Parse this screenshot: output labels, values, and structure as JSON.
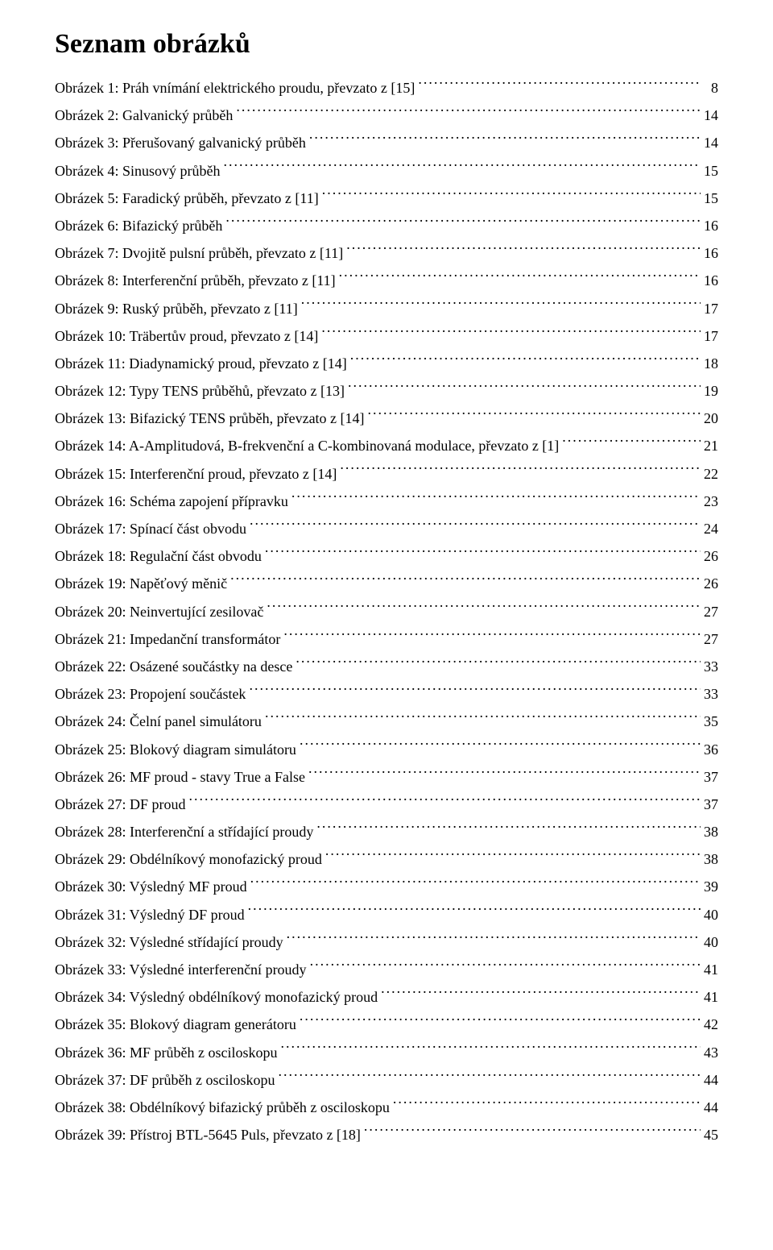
{
  "title": "Seznam obrázků",
  "entries": [
    {
      "label": "Obrázek 1: Práh vnímání elektrického proudu, převzato z [15]",
      "page": "8"
    },
    {
      "label": "Obrázek 2: Galvanický průběh",
      "page": "14"
    },
    {
      "label": "Obrázek 3: Přerušovaný galvanický průběh",
      "page": "14"
    },
    {
      "label": "Obrázek 4: Sinusový průběh",
      "page": "15"
    },
    {
      "label": "Obrázek 5: Faradický průběh, převzato z [11]",
      "page": "15"
    },
    {
      "label": "Obrázek 6: Bifazický průběh",
      "page": "16"
    },
    {
      "label": "Obrázek 7: Dvojitě pulsní průběh, převzato z [11]",
      "page": "16"
    },
    {
      "label": "Obrázek 8: Interferenční průběh, převzato z [11]",
      "page": "16"
    },
    {
      "label": "Obrázek 9: Ruský průběh, převzato z [11]",
      "page": "17"
    },
    {
      "label": "Obrázek 10: Träbertův proud, převzato z [14]",
      "page": "17"
    },
    {
      "label": "Obrázek 11: Diadynamický proud, převzato z [14]",
      "page": "18"
    },
    {
      "label": "Obrázek 12: Typy TENS průběhů, převzato z [13]",
      "page": "19"
    },
    {
      "label": "Obrázek 13: Bifazický TENS průběh, převzato z [14]",
      "page": "20"
    },
    {
      "label": "Obrázek 14: A-Amplitudová, B-frekvenční a C-kombinovaná modulace, převzato z [1]",
      "page": "21"
    },
    {
      "label": "Obrázek 15: Interferenční proud, převzato z [14]",
      "page": "22"
    },
    {
      "label": "Obrázek 16: Schéma zapojení přípravku",
      "page": "23"
    },
    {
      "label": "Obrázek 17: Spínací část obvodu",
      "page": "24"
    },
    {
      "label": "Obrázek 18: Regulační část obvodu",
      "page": "26"
    },
    {
      "label": "Obrázek 19: Napěťový měnič",
      "page": "26"
    },
    {
      "label": "Obrázek 20: Neinvertující zesilovač",
      "page": "27"
    },
    {
      "label": "Obrázek 21: Impedanční transformátor",
      "page": "27"
    },
    {
      "label": "Obrázek 22: Osázené součástky na desce",
      "page": "33"
    },
    {
      "label": "Obrázek 23: Propojení součástek",
      "page": "33"
    },
    {
      "label": "Obrázek 24: Čelní panel simulátoru",
      "page": "35"
    },
    {
      "label": "Obrázek 25: Blokový diagram simulátoru",
      "page": "36"
    },
    {
      "label": "Obrázek 26: MF proud - stavy True a False",
      "page": "37"
    },
    {
      "label": "Obrázek 27: DF proud",
      "page": "37"
    },
    {
      "label": "Obrázek 28: Interferenční a střídající proudy",
      "page": "38"
    },
    {
      "label": "Obrázek 29: Obdélníkový monofazický proud",
      "page": "38"
    },
    {
      "label": "Obrázek 30: Výsledný MF proud",
      "page": "39"
    },
    {
      "label": "Obrázek 31: Výsledný DF proud",
      "page": "40"
    },
    {
      "label": "Obrázek 32: Výsledné střídající proudy",
      "page": "40"
    },
    {
      "label": "Obrázek 33: Výsledné interferenční proudy",
      "page": "41"
    },
    {
      "label": "Obrázek 34: Výsledný obdélníkový monofazický proud",
      "page": "41"
    },
    {
      "label": "Obrázek 35: Blokový diagram generátoru",
      "page": "42"
    },
    {
      "label": "Obrázek 36: MF průběh z osciloskopu",
      "page": "43"
    },
    {
      "label": "Obrázek 37: DF průběh z osciloskopu",
      "page": "44"
    },
    {
      "label": "Obrázek 38: Obdélníkový bifazický průběh z osciloskopu",
      "page": "44"
    },
    {
      "label": "Obrázek 39: Přístroj BTL-5645 Puls, převzato z [18]",
      "page": "45"
    }
  ]
}
